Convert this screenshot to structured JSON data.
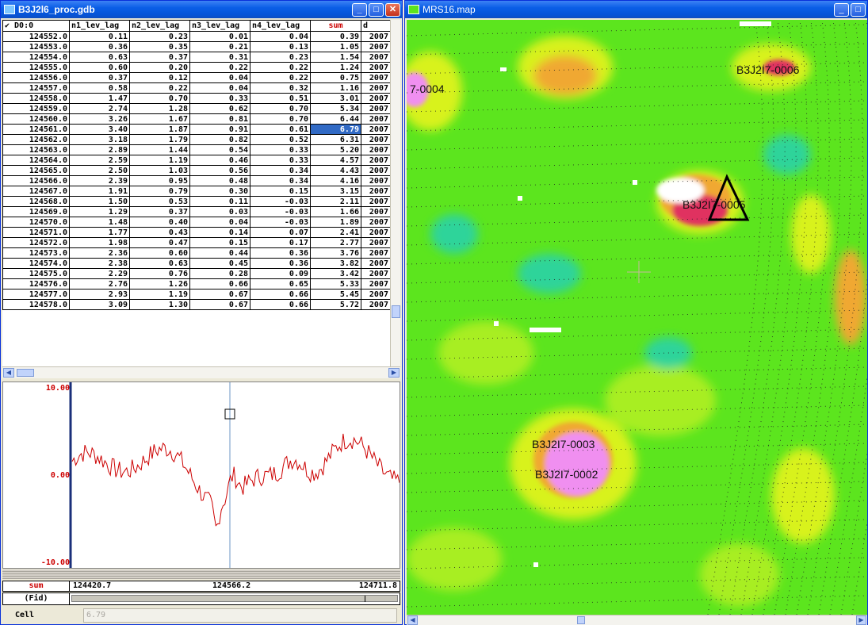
{
  "gdb_window": {
    "title": "B3J2l6_proc.gdb",
    "columns": [
      "✔ D0:0",
      "n1_lev_lag",
      "n2_lev_lag",
      "n3_lev_lag",
      "n4_lev_lag",
      "sum",
      "d"
    ],
    "rows": [
      [
        "124552.0",
        "0.11",
        "0.23",
        "0.01",
        "0.04",
        "0.39",
        "2007"
      ],
      [
        "124553.0",
        "0.36",
        "0.35",
        "0.21",
        "0.13",
        "1.05",
        "2007"
      ],
      [
        "124554.0",
        "0.63",
        "0.37",
        "0.31",
        "0.23",
        "1.54",
        "2007"
      ],
      [
        "124555.0",
        "0.60",
        "0.20",
        "0.22",
        "0.22",
        "1.24",
        "2007"
      ],
      [
        "124556.0",
        "0.37",
        "0.12",
        "0.04",
        "0.22",
        "0.75",
        "2007"
      ],
      [
        "124557.0",
        "0.58",
        "0.22",
        "0.04",
        "0.32",
        "1.16",
        "2007"
      ],
      [
        "124558.0",
        "1.47",
        "0.70",
        "0.33",
        "0.51",
        "3.01",
        "2007"
      ],
      [
        "124559.0",
        "2.74",
        "1.28",
        "0.62",
        "0.70",
        "5.34",
        "2007"
      ],
      [
        "124560.0",
        "3.26",
        "1.67",
        "0.81",
        "0.70",
        "6.44",
        "2007"
      ],
      [
        "124561.0",
        "3.40",
        "1.87",
        "0.91",
        "0.61",
        "6.79",
        "2007"
      ],
      [
        "124562.0",
        "3.18",
        "1.79",
        "0.82",
        "0.52",
        "6.31",
        "2007"
      ],
      [
        "124563.0",
        "2.89",
        "1.44",
        "0.54",
        "0.33",
        "5.20",
        "2007"
      ],
      [
        "124564.0",
        "2.59",
        "1.19",
        "0.46",
        "0.33",
        "4.57",
        "2007"
      ],
      [
        "124565.0",
        "2.50",
        "1.03",
        "0.56",
        "0.34",
        "4.43",
        "2007"
      ],
      [
        "124566.0",
        "2.39",
        "0.95",
        "0.48",
        "0.34",
        "4.16",
        "2007"
      ],
      [
        "124567.0",
        "1.91",
        "0.79",
        "0.30",
        "0.15",
        "3.15",
        "2007"
      ],
      [
        "124568.0",
        "1.50",
        "0.53",
        "0.11",
        "-0.03",
        "2.11",
        "2007"
      ],
      [
        "124569.0",
        "1.29",
        "0.37",
        "0.03",
        "-0.03",
        "1.66",
        "2007"
      ],
      [
        "124570.0",
        "1.48",
        "0.40",
        "0.04",
        "-0.03",
        "1.89",
        "2007"
      ],
      [
        "124571.0",
        "1.77",
        "0.43",
        "0.14",
        "0.07",
        "2.41",
        "2007"
      ],
      [
        "124572.0",
        "1.98",
        "0.47",
        "0.15",
        "0.17",
        "2.77",
        "2007"
      ],
      [
        "124573.0",
        "2.36",
        "0.60",
        "0.44",
        "0.36",
        "3.76",
        "2007"
      ],
      [
        "124574.0",
        "2.38",
        "0.63",
        "0.45",
        "0.36",
        "3.82",
        "2007"
      ],
      [
        "124575.0",
        "2.29",
        "0.76",
        "0.28",
        "0.09",
        "3.42",
        "2007"
      ],
      [
        "124576.0",
        "2.76",
        "1.26",
        "0.66",
        "0.65",
        "5.33",
        "2007"
      ],
      [
        "124577.0",
        "2.93",
        "1.19",
        "0.67",
        "0.66",
        "5.45",
        "2007"
      ],
      [
        "124578.0",
        "3.09",
        "1.30",
        "0.67",
        "0.66",
        "5.72",
        "2007"
      ]
    ],
    "selected_row": 9,
    "selected_col": 5,
    "profile": {
      "y_max_label": "10.00",
      "y_mid_label": "0.00",
      "y_min_label": "-10.00",
      "ylim": [
        -10,
        10
      ],
      "channel_label": "sum",
      "x_left": "124420.7",
      "x_mid": "124566.2",
      "x_right": "124711.8",
      "fid_label": "(Fid)",
      "cursor_fid": 124566.2
    },
    "cell_label": "Cell",
    "cell_value": "6.79"
  },
  "map_window": {
    "title": "MRS16.map",
    "labels": [
      "B3J2I7-0006",
      "7-0004",
      "B3J2I7-0005",
      "B3J2I7-0003",
      "B3J2I7-0002"
    ]
  },
  "colors": {
    "title_blue": "#0a5ee6",
    "profile_red": "#cc0000",
    "map_green": "#5ce51e",
    "map_yellow": "#d8f21a",
    "anomaly_pink": "#f08ff0"
  }
}
